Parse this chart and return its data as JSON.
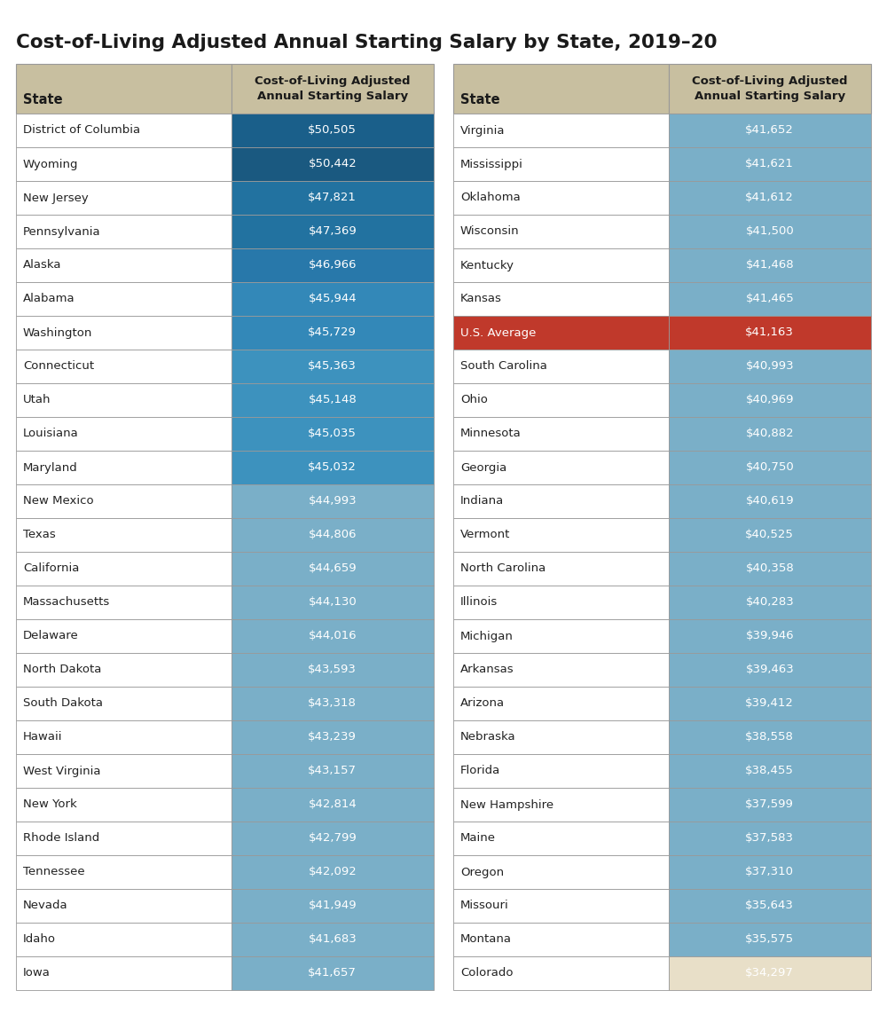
{
  "title": "Cost-of-Living Adjusted Annual Starting Salary by State, 2019–20",
  "left_table": [
    [
      "District of Columbia",
      "$50,505"
    ],
    [
      "Wyoming",
      "$50,442"
    ],
    [
      "New Jersey",
      "$47,821"
    ],
    [
      "Pennsylvania",
      "$47,369"
    ],
    [
      "Alaska",
      "$46,966"
    ],
    [
      "Alabama",
      "$45,944"
    ],
    [
      "Washington",
      "$45,729"
    ],
    [
      "Connecticut",
      "$45,363"
    ],
    [
      "Utah",
      "$45,148"
    ],
    [
      "Louisiana",
      "$45,035"
    ],
    [
      "Maryland",
      "$45,032"
    ],
    [
      "New Mexico",
      "$44,993"
    ],
    [
      "Texas",
      "$44,806"
    ],
    [
      "California",
      "$44,659"
    ],
    [
      "Massachusetts",
      "$44,130"
    ],
    [
      "Delaware",
      "$44,016"
    ],
    [
      "North Dakota",
      "$43,593"
    ],
    [
      "South Dakota",
      "$43,318"
    ],
    [
      "Hawaii",
      "$43,239"
    ],
    [
      "West Virginia",
      "$43,157"
    ],
    [
      "New York",
      "$42,814"
    ],
    [
      "Rhode Island",
      "$42,799"
    ],
    [
      "Tennessee",
      "$42,092"
    ],
    [
      "Nevada",
      "$41,949"
    ],
    [
      "Idaho",
      "$41,683"
    ],
    [
      "Iowa",
      "$41,657"
    ]
  ],
  "right_table": [
    [
      "Virginia",
      "$41,652"
    ],
    [
      "Mississippi",
      "$41,621"
    ],
    [
      "Oklahoma",
      "$41,612"
    ],
    [
      "Wisconsin",
      "$41,500"
    ],
    [
      "Kentucky",
      "$41,468"
    ],
    [
      "Kansas",
      "$41,465"
    ],
    [
      "U.S. Average",
      "$41,163"
    ],
    [
      "South Carolina",
      "$40,993"
    ],
    [
      "Ohio",
      "$40,969"
    ],
    [
      "Minnesota",
      "$40,882"
    ],
    [
      "Georgia",
      "$40,750"
    ],
    [
      "Indiana",
      "$40,619"
    ],
    [
      "Vermont",
      "$40,525"
    ],
    [
      "North Carolina",
      "$40,358"
    ],
    [
      "Illinois",
      "$40,283"
    ],
    [
      "Michigan",
      "$39,946"
    ],
    [
      "Arkansas",
      "$39,463"
    ],
    [
      "Arizona",
      "$39,412"
    ],
    [
      "Nebraska",
      "$38,558"
    ],
    [
      "Florida",
      "$38,455"
    ],
    [
      "New Hampshire",
      "$37,599"
    ],
    [
      "Maine",
      "$37,583"
    ],
    [
      "Oregon",
      "$37,310"
    ],
    [
      "Missouri",
      "$35,643"
    ],
    [
      "Montana",
      "$35,575"
    ],
    [
      "Colorado",
      "$34,297"
    ]
  ],
  "left_value_colors": [
    "#1a5f8a",
    "#1a5980",
    "#2272a0",
    "#2272a0",
    "#2878aa",
    "#3388b8",
    "#3388b8",
    "#3d92be",
    "#3d92be",
    "#3d92be",
    "#3d92be",
    "#7aafc8",
    "#7aafc8",
    "#7aafc8",
    "#7aafc8",
    "#7aafc8",
    "#7aafc8",
    "#7aafc8",
    "#7aafc8",
    "#7aafc8",
    "#7aafc8",
    "#7aafc8",
    "#7aafc8",
    "#7aafc8",
    "#7aafc8",
    "#7aafc8"
  ],
  "right_value_colors": [
    "#7aafc8",
    "#7aafc8",
    "#7aafc8",
    "#7aafc8",
    "#7aafc8",
    "#7aafc8",
    "#c0392b",
    "#7aafc8",
    "#7aafc8",
    "#7aafc8",
    "#7aafc8",
    "#7aafc8",
    "#7aafc8",
    "#7aafc8",
    "#7aafc8",
    "#7aafc8",
    "#7aafc8",
    "#7aafc8",
    "#7aafc8",
    "#7aafc8",
    "#7aafc8",
    "#7aafc8",
    "#7aafc8",
    "#7aafc8",
    "#7aafc8",
    "#e8dfc8"
  ],
  "us_avg_row_idx": 6,
  "header_bg": "#c8bfa0",
  "cell_text_color": "#ffffff",
  "state_text_color": "#222222",
  "us_avg_state_text_color": "#ffffff",
  "border_color": "#999999",
  "title_color": "#1a1a1a",
  "background_color": "#ffffff",
  "fig_width": 10.0,
  "fig_height": 11.61,
  "dpi": 100
}
